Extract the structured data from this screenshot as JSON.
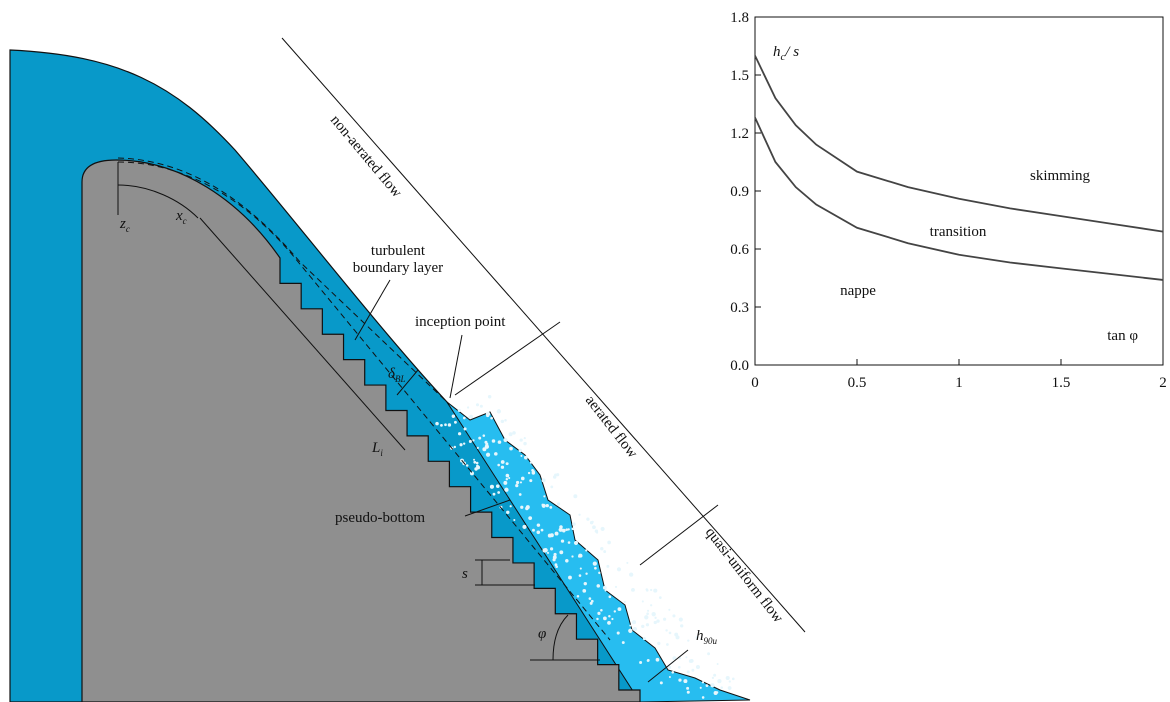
{
  "diagram": {
    "labels": {
      "non_aerated_flow": "non-aerated flow",
      "turbulent": "turbulent",
      "boundary_layer": "boundary layer",
      "inception_point": "inception point",
      "aerated_flow": "aerated flow",
      "quasi_uniform_flow": "quasi-uniform flow",
      "pseudo_bottom": "pseudo-bottom",
      "s": "s",
      "phi": "φ",
      "h": "h",
      "h_sub": "90u",
      "delta": "δ",
      "delta_sub": "BL",
      "L": "L",
      "L_sub": "i",
      "z": "z",
      "z_sub": "c",
      "x": "x",
      "x_sub": "c"
    }
  },
  "chart_data": {
    "type": "line",
    "ylabel": [
      "h",
      "c",
      "/ s"
    ],
    "xlabel": "tan φ",
    "annotations": [
      "skimming",
      "transition",
      "nappe"
    ],
    "x": [
      0,
      0.1,
      0.2,
      0.3,
      0.5,
      0.75,
      1,
      1.25,
      1.5,
      1.75,
      2
    ],
    "series": [
      {
        "color": "#444444",
        "values": [
          1.6,
          1.38,
          1.24,
          1.14,
          1.0,
          0.92,
          0.86,
          0.81,
          0.77,
          0.73,
          0.69
        ]
      },
      {
        "color": "#444444",
        "values": [
          1.28,
          1.05,
          0.92,
          0.83,
          0.71,
          0.63,
          0.57,
          0.53,
          0.5,
          0.47,
          0.44
        ]
      }
    ],
    "xlim": [
      0,
      2
    ],
    "ylim": [
      0,
      1.8
    ],
    "xticks": [
      0,
      0.5,
      1,
      1.5,
      2
    ],
    "yticks": [
      {
        "value": 0,
        "label": "0.0"
      },
      0.3,
      0.6,
      0.9,
      1.2,
      1.5,
      1.8
    ],
    "grid": false
  }
}
